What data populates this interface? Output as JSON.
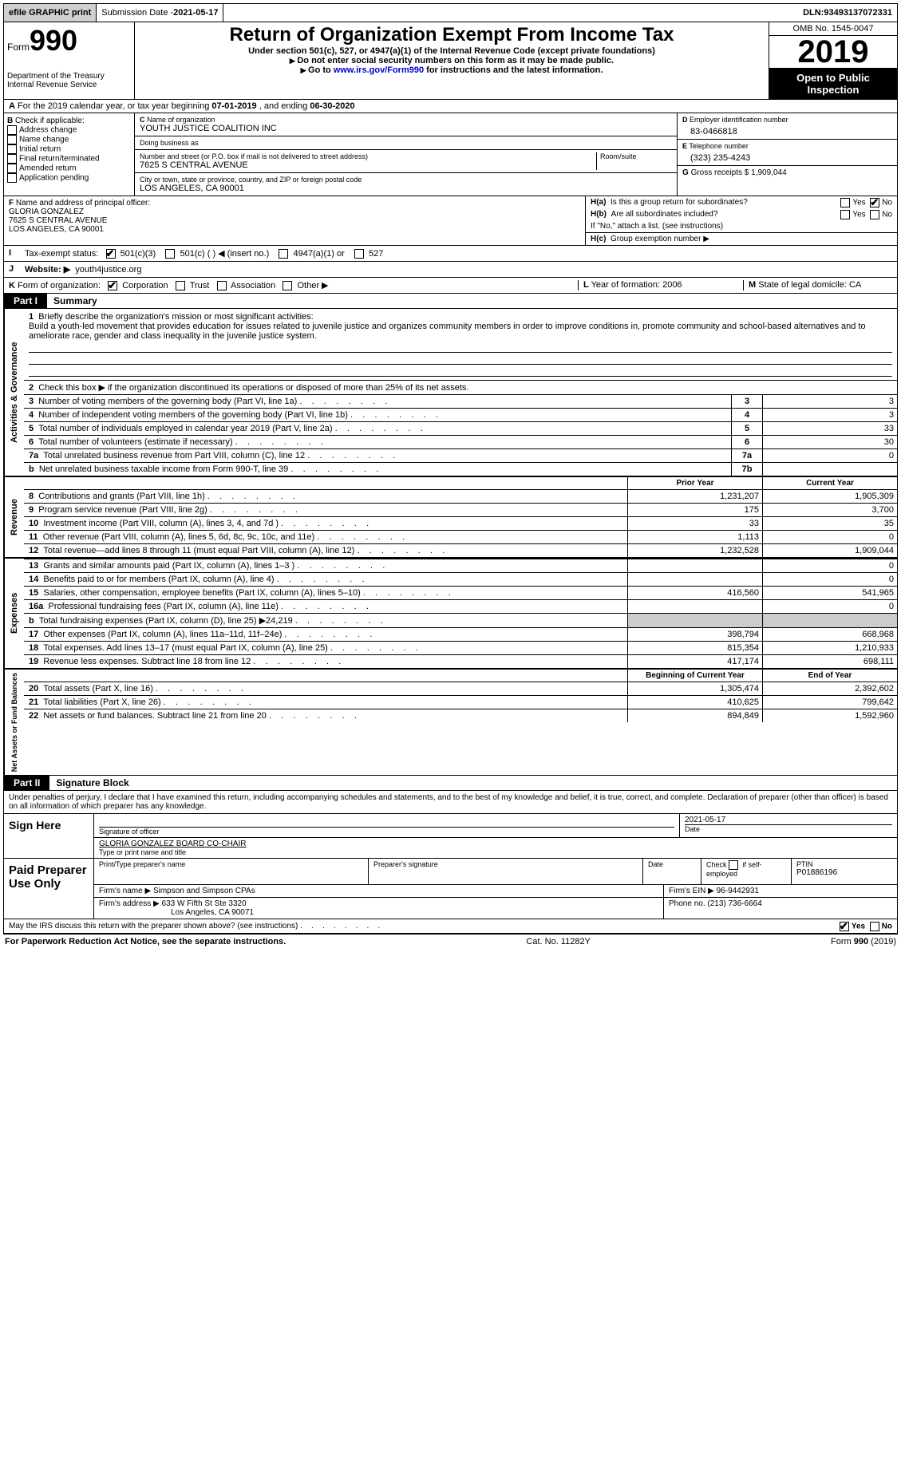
{
  "topbar": {
    "efile": "efile GRAPHIC print",
    "subdate_label": "Submission Date - ",
    "subdate": "2021-05-17",
    "dln_label": "DLN: ",
    "dln": "93493137072331"
  },
  "header": {
    "form_prefix": "Form",
    "form_num": "990",
    "dept1": "Department of the Treasury",
    "dept2": "Internal Revenue Service",
    "title": "Return of Organization Exempt From Income Tax",
    "sub1": "Under section 501(c), 527, or 4947(a)(1) of the Internal Revenue Code (except private foundations)",
    "sub2": "Do not enter social security numbers on this form as it may be made public.",
    "sub3_pre": "Go to ",
    "sub3_link": "www.irs.gov/Form990",
    "sub3_post": " for instructions and the latest information.",
    "omb": "OMB No. 1545-0047",
    "year": "2019",
    "inspection": "Open to Public Inspection"
  },
  "line_a": {
    "pre": "For the 2019 calendar year, or tax year beginning ",
    "begin": "07-01-2019",
    "mid": "   , and ending ",
    "end": "06-30-2020"
  },
  "box_b": {
    "label": "Check if applicable:",
    "opts": [
      "Address change",
      "Name change",
      "Initial return",
      "Final return/terminated",
      "Amended return",
      "Application pending"
    ]
  },
  "box_c": {
    "name_lbl": "Name of organization",
    "name": "YOUTH JUSTICE COALITION INC",
    "dba_lbl": "Doing business as",
    "dba": "",
    "street_lbl": "Number and street (or P.O. box if mail is not delivered to street address)",
    "room_lbl": "Room/suite",
    "street": "7625 S CENTRAL AVENUE",
    "city_lbl": "City or town, state or province, country, and ZIP or foreign postal code",
    "city": "LOS ANGELES, CA  90001"
  },
  "box_d": {
    "ein_lbl": "Employer identification number",
    "ein": "83-0466818",
    "tel_lbl": "Telephone number",
    "tel": "(323) 235-4243",
    "gross_lbl": "Gross receipts $ ",
    "gross": "1,909,044"
  },
  "box_f": {
    "lbl": "Name and address of principal officer:",
    "name": "GLORIA GONZALEZ",
    "street": "7625 S CENTRAL AVENUE",
    "city": "LOS ANGELES, CA  90001"
  },
  "box_h": {
    "a_lbl": "Is this a group return for subordinates?",
    "a_yes": "Yes",
    "a_no": "No",
    "b_lbl": "Are all subordinates included?",
    "note": "If \"No,\" attach a list. (see instructions)",
    "c_lbl": "Group exemption number ▶"
  },
  "line_i": {
    "lbl": "Tax-exempt status:",
    "o1": "501(c)(3)",
    "o2": "501(c) (  ) ◀ (insert no.)",
    "o3": "4947(a)(1) or",
    "o4": "527"
  },
  "line_j": {
    "lbl": "Website: ▶",
    "val": "youth4justice.org"
  },
  "line_k": {
    "lbl": "Form of organization:",
    "o1": "Corporation",
    "o2": "Trust",
    "o3": "Association",
    "o4": "Other ▶"
  },
  "line_lm": {
    "l_lbl": "Year of formation: ",
    "l_val": "2006",
    "m_lbl": "State of legal domicile: ",
    "m_val": "CA"
  },
  "part1": {
    "num": "Part I",
    "title": "Summary"
  },
  "mission": {
    "q1": "Briefly describe the organization's mission or most significant activities:",
    "text": "Build a youth-led movement that provides education for issues related to juvenile justice and organizes community members in order to improve conditions in, promote community and school-based alternatives and to ameliorate race, gender and class inequality in the juvenile justice system."
  },
  "gov": {
    "label": "Activities & Governance",
    "l2": "Check this box ▶     if the organization discontinued its operations or disposed of more than 25% of its net assets.",
    "l3": "Number of voting members of the governing body (Part VI, line 1a)",
    "l4": "Number of independent voting members of the governing body (Part VI, line 1b)",
    "l5": "Total number of individuals employed in calendar year 2019 (Part V, line 2a)",
    "l6": "Total number of volunteers (estimate if necessary)",
    "l7a": "Total unrelated business revenue from Part VIII, column (C), line 12",
    "l7b": "Net unrelated business taxable income from Form 990-T, line 39",
    "v3": "3",
    "v4": "3",
    "v5": "33",
    "v6": "30",
    "v7a": "0",
    "v7b": ""
  },
  "cols": {
    "prior": "Prior Year",
    "current": "Current Year",
    "boy": "Beginning of Current Year",
    "eoy": "End of Year"
  },
  "rev": {
    "label": "Revenue",
    "rows": [
      {
        "n": "8",
        "d": "Contributions and grants (Part VIII, line 1h)",
        "p": "1,231,207",
        "c": "1,905,309"
      },
      {
        "n": "9",
        "d": "Program service revenue (Part VIII, line 2g)",
        "p": "175",
        "c": "3,700"
      },
      {
        "n": "10",
        "d": "Investment income (Part VIII, column (A), lines 3, 4, and 7d )",
        "p": "33",
        "c": "35"
      },
      {
        "n": "11",
        "d": "Other revenue (Part VIII, column (A), lines 5, 6d, 8c, 9c, 10c, and 11e)",
        "p": "1,113",
        "c": "0"
      },
      {
        "n": "12",
        "d": "Total revenue—add lines 8 through 11 (must equal Part VIII, column (A), line 12)",
        "p": "1,232,528",
        "c": "1,909,044"
      }
    ]
  },
  "exp": {
    "label": "Expenses",
    "rows": [
      {
        "n": "13",
        "d": "Grants and similar amounts paid (Part IX, column (A), lines 1–3 )",
        "p": "",
        "c": "0"
      },
      {
        "n": "14",
        "d": "Benefits paid to or for members (Part IX, column (A), line 4)",
        "p": "",
        "c": "0"
      },
      {
        "n": "15",
        "d": "Salaries, other compensation, employee benefits (Part IX, column (A), lines 5–10)",
        "p": "416,560",
        "c": "541,965"
      },
      {
        "n": "16a",
        "d": "Professional fundraising fees (Part IX, column (A), line 11e)",
        "p": "",
        "c": "0"
      },
      {
        "n": "b",
        "d": "Total fundraising expenses (Part IX, column (D), line 25) ▶24,219",
        "p": "",
        "c": "",
        "shade": true
      },
      {
        "n": "17",
        "d": "Other expenses (Part IX, column (A), lines 11a–11d, 11f–24e)",
        "p": "398,794",
        "c": "668,968"
      },
      {
        "n": "18",
        "d": "Total expenses. Add lines 13–17 (must equal Part IX, column (A), line 25)",
        "p": "815,354",
        "c": "1,210,933"
      },
      {
        "n": "19",
        "d": "Revenue less expenses. Subtract line 18 from line 12",
        "p": "417,174",
        "c": "698,111"
      }
    ]
  },
  "net": {
    "label": "Net Assets or Fund Balances",
    "rows": [
      {
        "n": "20",
        "d": "Total assets (Part X, line 16)",
        "p": "1,305,474",
        "c": "2,392,602"
      },
      {
        "n": "21",
        "d": "Total liabilities (Part X, line 26)",
        "p": "410,625",
        "c": "799,642"
      },
      {
        "n": "22",
        "d": "Net assets or fund balances. Subtract line 21 from line 20",
        "p": "894,849",
        "c": "1,592,960"
      }
    ]
  },
  "part2": {
    "num": "Part II",
    "title": "Signature Block"
  },
  "perjury": "Under penalties of perjury, I declare that I have examined this return, including accompanying schedules and statements, and to the best of my knowledge and belief, it is true, correct, and complete. Declaration of preparer (other than officer) is based on all information of which preparer has any knowledge.",
  "sign": {
    "here": "Sign Here",
    "sig_lbl": "Signature of officer",
    "date_lbl": "Date",
    "date": "2021-05-17",
    "name": "GLORIA GONZALEZ  BOARD CO-CHAIR",
    "name_lbl": "Type or print name and title"
  },
  "prep": {
    "here": "Paid Preparer Use Only",
    "h1": "Print/Type preparer's name",
    "h2": "Preparer's signature",
    "h3": "Date",
    "h4_pre": "Check",
    "h4_post": "if self-employed",
    "ptin_lbl": "PTIN",
    "ptin": "P01886196",
    "firm_lbl": "Firm's name   ▶ ",
    "firm": "Simpson and Simpson CPAs",
    "ein_lbl": "Firm's EIN ▶ ",
    "ein": "96-9442931",
    "addr_lbl": "Firm's address ▶ ",
    "addr1": "633 W Fifth St Ste 3320",
    "addr2": "Los Angeles, CA  90071",
    "phone_lbl": "Phone no. ",
    "phone": "(213) 736-6664"
  },
  "discuss": {
    "q": "May the IRS discuss this return with the preparer shown above? (see instructions)",
    "yes": "Yes",
    "no": "No"
  },
  "footer": {
    "l": "For Paperwork Reduction Act Notice, see the separate instructions.",
    "m": "Cat. No. 11282Y",
    "r_pre": "Form ",
    "r_b": "990",
    "r_post": " (2019)"
  }
}
